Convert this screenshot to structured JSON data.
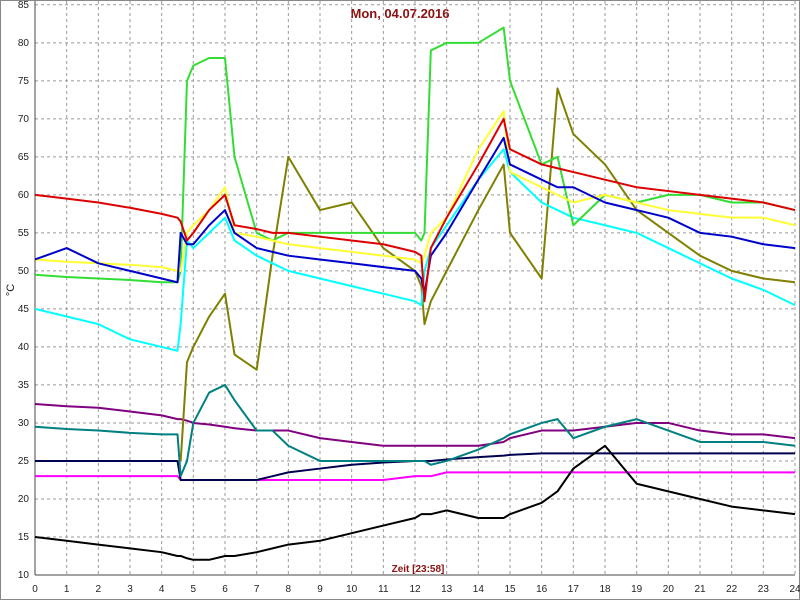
{
  "chart_data": {
    "type": "line",
    "title": "Mon, 04.07.2016",
    "x_label": "Zeit [23:58]",
    "y_label": "°C",
    "xlim": [
      0,
      24
    ],
    "xticks": [
      0,
      1,
      2,
      3,
      4,
      5,
      6,
      7,
      8,
      9,
      10,
      11,
      12,
      13,
      14,
      15,
      16,
      17,
      18,
      19,
      20,
      21,
      22,
      23,
      24
    ],
    "ylim": [
      10,
      85.5
    ],
    "yticks": [
      10,
      15,
      20,
      25,
      30,
      35,
      40,
      45,
      50,
      55,
      60,
      65,
      70,
      75,
      80,
      85
    ],
    "grid": true,
    "x": [
      0,
      1,
      2,
      3,
      4,
      4.5,
      4.6,
      4.8,
      5,
      5.5,
      6,
      6.3,
      7,
      7.5,
      8,
      9,
      10,
      11,
      12,
      12.2,
      12.3,
      12.5,
      13,
      14,
      14.8,
      15,
      16,
      16.5,
      17,
      18,
      19,
      20,
      21,
      22,
      23,
      24
    ],
    "series": [
      {
        "color": "#ff00ff",
        "values": [
          23,
          23,
          23,
          23,
          23,
          23,
          22.5,
          22.5,
          22.5,
          22.5,
          22.5,
          22.5,
          22.5,
          22.5,
          22.5,
          22.5,
          22.5,
          22.5,
          23,
          23,
          23,
          23,
          23.5,
          23.5,
          23.5,
          23.5,
          23.5,
          23.5,
          23.5,
          23.5,
          23.5,
          23.5,
          23.5,
          23.5,
          23.5,
          23.5
        ]
      },
      {
        "color": "#000050",
        "values": [
          25,
          25,
          25,
          25,
          25,
          25,
          22.5,
          22.5,
          22.5,
          22.5,
          22.5,
          22.5,
          22.5,
          23,
          23.5,
          24,
          24.5,
          24.8,
          25,
          25,
          25,
          25,
          25.2,
          25.5,
          25.7,
          25.8,
          26,
          26,
          26,
          26,
          26,
          26,
          26,
          26,
          26,
          26
        ]
      },
      {
        "color": "#800080",
        "values": [
          32.5,
          32.2,
          32,
          31.5,
          31,
          30.5,
          30.5,
          30.3,
          30,
          29.8,
          29.5,
          29.3,
          29,
          29,
          29,
          28,
          27.5,
          27,
          27,
          27,
          27,
          27,
          27,
          27,
          27.5,
          28,
          29,
          29,
          29,
          29.5,
          30,
          30,
          29,
          28.5,
          28.5,
          28
        ]
      },
      {
        "color": "#008080",
        "values": [
          29.5,
          29.2,
          29,
          28.7,
          28.5,
          28.5,
          23,
          25,
          30,
          34,
          35,
          33,
          29,
          29,
          27,
          25,
          25,
          25,
          25,
          25,
          25,
          24.5,
          25,
          26.5,
          28,
          28.5,
          30,
          30.5,
          28,
          29.5,
          30.5,
          29,
          27.5,
          27.5,
          27.5,
          27
        ]
      },
      {
        "color": "#000000",
        "values": [
          15,
          14.5,
          14,
          13.5,
          13,
          12.5,
          12.5,
          12.2,
          12,
          12,
          12.5,
          12.5,
          13,
          13.5,
          14,
          14.5,
          15.5,
          16.5,
          17.5,
          18,
          18,
          18,
          18.5,
          17.5,
          17.5,
          18,
          19.5,
          21,
          24,
          27,
          22,
          21,
          20,
          19,
          18.5,
          18
        ]
      },
      {
        "color": "#808000",
        "values": [
          null,
          null,
          null,
          null,
          null,
          null,
          25,
          38,
          40,
          44,
          47,
          39,
          37,
          52,
          65,
          58,
          59,
          53,
          50,
          48,
          43,
          46,
          50,
          58,
          64,
          55,
          49,
          74,
          68,
          64,
          58,
          55,
          52,
          50,
          49,
          48.5
        ]
      },
      {
        "color": "#00ffff",
        "values": [
          45,
          44,
          43,
          41,
          40,
          39.5,
          43,
          54,
          53,
          55,
          57,
          54,
          52,
          51,
          50,
          49,
          48,
          47,
          46,
          45.5,
          50,
          53,
          56,
          62,
          66,
          63,
          59,
          58,
          57,
          56,
          55,
          53,
          51,
          49,
          47.5,
          45.5
        ]
      },
      {
        "color": "#33dd33",
        "values": [
          49.5,
          49.2,
          49,
          48.8,
          48.5,
          48.5,
          50,
          75,
          77,
          78,
          78,
          65,
          55,
          54,
          55,
          55,
          55,
          55,
          55,
          54,
          55,
          79,
          80,
          80,
          82,
          75,
          64,
          65,
          56,
          60,
          59,
          60,
          60,
          59,
          59,
          58
        ]
      },
      {
        "color": "#ffff33",
        "values": [
          51.5,
          51.2,
          51,
          50.8,
          50.5,
          50,
          50,
          55,
          56,
          58,
          61,
          55,
          54.5,
          54,
          53.5,
          53,
          52.5,
          52,
          51.5,
          51,
          52,
          55,
          57,
          66,
          71,
          63,
          61,
          60,
          59,
          60,
          59,
          58,
          57.5,
          57,
          57,
          56
        ]
      },
      {
        "color": "#0000cc",
        "values": [
          51.5,
          53,
          51,
          50,
          49,
          48.5,
          55,
          53.5,
          53.5,
          56,
          58,
          55,
          53,
          52.5,
          52,
          51.5,
          51,
          50.5,
          50,
          49,
          47,
          52,
          55,
          62,
          67.5,
          64,
          62,
          61,
          61,
          59,
          58,
          57,
          55,
          54.5,
          53.5,
          53
        ]
      },
      {
        "color": "#dd0000",
        "values": [
          60,
          59.5,
          59,
          58.3,
          57.5,
          57,
          56.5,
          54,
          55,
          58,
          60,
          56,
          55.5,
          55,
          55,
          54.5,
          54,
          53.5,
          52.5,
          52,
          46,
          53,
          57,
          64,
          70,
          66,
          64,
          63.5,
          63,
          62,
          61,
          60.5,
          60,
          59.5,
          59,
          58
        ]
      }
    ]
  }
}
